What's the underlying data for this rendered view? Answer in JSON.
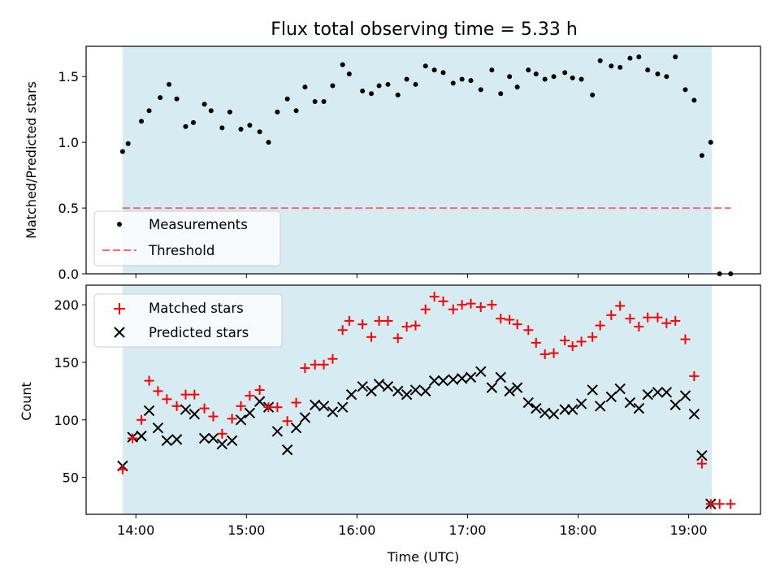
{
  "chart_data": {
    "type": "scatter",
    "title": "Flux total observing time = 5.33 h",
    "xlabel": "Time (UTC)",
    "x_ticks": [
      "14:00",
      "15:00",
      "16:00",
      "17:00",
      "18:00",
      "19:00"
    ],
    "x_tick_hours": [
      14,
      15,
      16,
      17,
      18,
      19
    ],
    "xlim_hours": [
      13.55,
      19.65
    ],
    "shaded_span_hours": [
      13.88,
      19.21
    ],
    "colors": {
      "shade": "#add8e6",
      "measurements": "#000000",
      "threshold": "#ff6b6b",
      "matched": "#ff0000",
      "predicted": "#000000"
    },
    "top": {
      "ylabel": "Matched/Predicted stars",
      "ylim": [
        0,
        1.73
      ],
      "yticks": [
        "0.0",
        "0.5",
        "1.0",
        "1.5"
      ],
      "ytick_values": [
        0,
        0.5,
        1.0,
        1.5
      ],
      "legend": {
        "placement": "lower-left",
        "measurements": "Measurements",
        "threshold": "Threshold"
      },
      "threshold": {
        "value": 0.5,
        "x_start_hours": 13.88,
        "x_end_hours": 19.38
      },
      "series": [
        {
          "name": "Measurements",
          "x_hours": [
            13.88,
            13.93,
            14.05,
            14.12,
            14.22,
            14.3,
            14.37,
            14.45,
            14.52,
            14.62,
            14.68,
            14.78,
            14.85,
            14.95,
            15.03,
            15.12,
            15.2,
            15.28,
            15.37,
            15.45,
            15.53,
            15.62,
            15.7,
            15.78,
            15.87,
            15.93,
            16.05,
            16.13,
            16.2,
            16.28,
            16.37,
            16.45,
            16.53,
            16.62,
            16.7,
            16.78,
            16.87,
            16.95,
            17.03,
            17.12,
            17.22,
            17.3,
            17.38,
            17.45,
            17.55,
            17.62,
            17.7,
            17.78,
            17.88,
            17.95,
            18.03,
            18.13,
            18.2,
            18.3,
            18.38,
            18.47,
            18.55,
            18.63,
            18.72,
            18.8,
            18.88,
            18.97,
            19.05,
            19.12,
            19.2,
            19.28,
            19.38
          ],
          "y": [
            0.93,
            0.99,
            1.16,
            1.24,
            1.34,
            1.44,
            1.33,
            1.12,
            1.15,
            1.29,
            1.24,
            1.11,
            1.23,
            1.1,
            1.13,
            1.08,
            1.0,
            1.23,
            1.33,
            1.24,
            1.42,
            1.31,
            1.31,
            1.43,
            1.59,
            1.52,
            1.39,
            1.37,
            1.43,
            1.44,
            1.36,
            1.48,
            1.44,
            1.58,
            1.55,
            1.53,
            1.45,
            1.48,
            1.47,
            1.4,
            1.55,
            1.37,
            1.5,
            1.42,
            1.55,
            1.52,
            1.48,
            1.5,
            1.53,
            1.49,
            1.48,
            1.36,
            1.62,
            1.58,
            1.57,
            1.64,
            1.65,
            1.55,
            1.52,
            1.5,
            1.65,
            1.4,
            1.32,
            0.9,
            1.0,
            0.0,
            0.0
          ]
        }
      ]
    },
    "bottom": {
      "ylabel": "Count",
      "ylim": [
        18,
        217
      ],
      "yticks": [
        "50",
        "100",
        "150",
        "200"
      ],
      "ytick_values": [
        50,
        100,
        150,
        200
      ],
      "legend": {
        "placement": "upper-left",
        "matched": "Matched stars",
        "predicted": "Predicted stars"
      },
      "series": [
        {
          "name": "Matched stars",
          "x_hours": [
            13.88,
            13.97,
            14.05,
            14.12,
            14.2,
            14.28,
            14.37,
            14.45,
            14.53,
            14.62,
            14.7,
            14.78,
            14.87,
            14.95,
            15.03,
            15.12,
            15.2,
            15.28,
            15.37,
            15.45,
            15.53,
            15.62,
            15.7,
            15.78,
            15.87,
            15.93,
            16.05,
            16.13,
            16.2,
            16.28,
            16.37,
            16.45,
            16.53,
            16.62,
            16.7,
            16.78,
            16.87,
            16.95,
            17.03,
            17.12,
            17.22,
            17.3,
            17.38,
            17.45,
            17.55,
            17.62,
            17.7,
            17.78,
            17.88,
            17.95,
            18.03,
            18.13,
            18.2,
            18.3,
            18.38,
            18.47,
            18.55,
            18.63,
            18.72,
            18.8,
            18.88,
            18.97,
            19.05,
            19.12,
            19.2,
            19.28,
            19.38
          ],
          "y": [
            57,
            84,
            100,
            134,
            125,
            118,
            112,
            122,
            122,
            110,
            103,
            88,
            101,
            112,
            121,
            126,
            111,
            111,
            99,
            115,
            145,
            148,
            148,
            153,
            178,
            186,
            183,
            172,
            186,
            186,
            171,
            181,
            182,
            196,
            207,
            203,
            196,
            200,
            201,
            198,
            200,
            188,
            187,
            183,
            178,
            167,
            157,
            158,
            169,
            164,
            168,
            172,
            182,
            191,
            199,
            188,
            181,
            189,
            189,
            184,
            186,
            170,
            138,
            62,
            27,
            27,
            27
          ]
        },
        {
          "name": "Predicted stars",
          "x_hours": [
            13.88,
            13.97,
            14.05,
            14.12,
            14.2,
            14.28,
            14.37,
            14.45,
            14.53,
            14.62,
            14.7,
            14.78,
            14.87,
            14.95,
            15.03,
            15.12,
            15.2,
            15.28,
            15.37,
            15.45,
            15.53,
            15.62,
            15.7,
            15.78,
            15.87,
            15.95,
            16.05,
            16.13,
            16.2,
            16.28,
            16.37,
            16.45,
            16.53,
            16.62,
            16.7,
            16.78,
            16.87,
            16.95,
            17.03,
            17.12,
            17.22,
            17.3,
            17.38,
            17.45,
            17.55,
            17.62,
            17.7,
            17.78,
            17.88,
            17.95,
            18.03,
            18.13,
            18.2,
            18.3,
            18.38,
            18.47,
            18.55,
            18.63,
            18.72,
            18.8,
            18.88,
            18.97,
            19.05,
            19.12,
            19.2
          ],
          "y": [
            60,
            85,
            86,
            108,
            93,
            82,
            83,
            109,
            105,
            84,
            84,
            79,
            82,
            100,
            106,
            116,
            111,
            90,
            74,
            93,
            102,
            113,
            112,
            107,
            111,
            122,
            129,
            125,
            131,
            129,
            125,
            122,
            126,
            125,
            134,
            134,
            135,
            136,
            137,
            142,
            128,
            137,
            125,
            128,
            115,
            110,
            106,
            105,
            109,
            109,
            114,
            126,
            112,
            120,
            127,
            115,
            110,
            122,
            124,
            124,
            113,
            121,
            105,
            69,
            27
          ]
        }
      ]
    }
  }
}
